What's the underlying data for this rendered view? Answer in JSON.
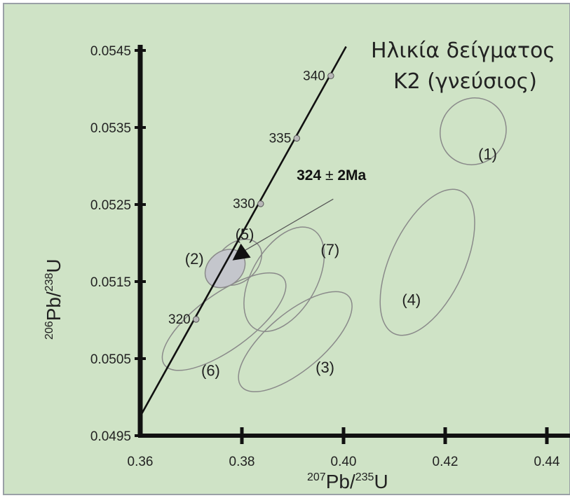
{
  "colors": {
    "background": "#cfe3c6",
    "frame": "#9aa0a6",
    "axis": "#111111",
    "concordia": "#111111",
    "ellipse_stroke": "#8a8a8a",
    "highlight_fill": "#c4c6cc",
    "age_marker": "#b8b8b8"
  },
  "chart_data": {
    "type": "scatter",
    "title_lines": [
      "Ηλικία δείγματος",
      "K2 (γνεύσιος)"
    ],
    "xlabel": {
      "mass_top": "207",
      "element_top": "Pb",
      "mass_bottom": "235",
      "element_bottom": "U"
    },
    "ylabel": {
      "mass_top": "206",
      "element_top": "Pb",
      "mass_bottom": "238",
      "element_bottom": "U"
    },
    "xlim": [
      0.36,
      0.44
    ],
    "ylim": [
      0.0495,
      0.0545
    ],
    "x_ticks": [
      "0.36",
      "0.38",
      "0.40",
      "0.42",
      "0.44"
    ],
    "y_ticks": [
      "0.0495",
      "0.0505",
      "0.0515",
      "0.0525",
      "0.0535",
      "0.0545"
    ],
    "concordia": {
      "start": [
        0.36,
        0.04975
      ],
      "end": [
        0.4005,
        0.05455
      ],
      "age_markers": [
        {
          "label": "320",
          "x": 0.371,
          "y": 0.05101
        },
        {
          "label": "330",
          "x": 0.3837,
          "y": 0.05251
        },
        {
          "label": "335",
          "x": 0.3908,
          "y": 0.05336
        },
        {
          "label": "340",
          "x": 0.3975,
          "y": 0.05417
        }
      ]
    },
    "ellipses": [
      {
        "label": "(1)",
        "cx": 0.4255,
        "cy": 0.05345,
        "rx": 0.0067,
        "ry": 0.00042,
        "angle_deg": 52,
        "highlight": false,
        "label_at": [
          0.4265,
          "0.05315"
        ]
      },
      {
        "label": "(2)",
        "cx": 0.3767,
        "cy": 0.05167,
        "rx": 0.0043,
        "ry": 0.00022,
        "angle_deg": 40,
        "highlight": true,
        "label_at": [
          0.3688,
          "0.05179"
        ]
      },
      {
        "label": "(3)",
        "cx": 0.3905,
        "cy": 0.05072,
        "rx": 0.0138,
        "ry": 0.00037,
        "angle_deg": 40,
        "highlight": false,
        "label_at": [
          0.3945,
          "0.05038"
        ]
      },
      {
        "label": "(4)",
        "cx": 0.4165,
        "cy": 0.05175,
        "rx": 0.0155,
        "ry": 0.00048,
        "angle_deg": 65,
        "highlight": false,
        "label_at": [
          0.4115,
          "0.05126"
        ]
      },
      {
        "label": "(5)",
        "cx": 0.3792,
        "cy": 0.05175,
        "rx": 0.0053,
        "ry": 0.00025,
        "angle_deg": 42,
        "highlight": false,
        "label_at": [
          0.3787,
          "0.05211"
        ]
      },
      {
        "label": "(6)",
        "cx": 0.3765,
        "cy": 0.05098,
        "rx": 0.0145,
        "ry": 0.00036,
        "angle_deg": 36,
        "highlight": false,
        "label_at": [
          0.372,
          "0.05034"
        ]
      },
      {
        "label": "(7)",
        "cx": 0.3883,
        "cy": 0.05153,
        "rx": 0.0113,
        "ry": 0.00042,
        "angle_deg": 60,
        "highlight": false,
        "label_at": [
          0.3955,
          "0.05191"
        ]
      }
    ],
    "annotation": {
      "text_value": "324",
      "text_pm": "±",
      "text_err": "2Ma",
      "text_at": [
        0.3825,
        "0.05262"
      ],
      "arrow_from": [
        0.3897,
        "0.05248"
      ],
      "arrow_to": [
        0.3787,
        "0.05183"
      ]
    }
  }
}
